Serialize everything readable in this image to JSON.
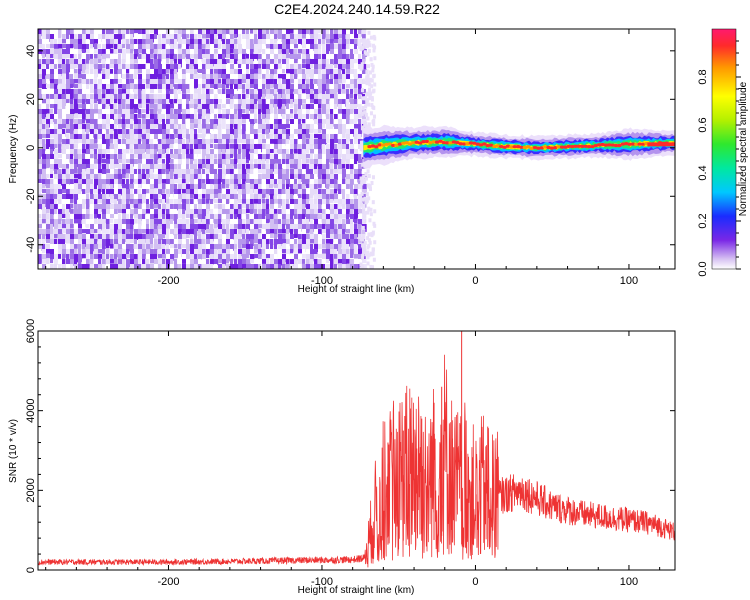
{
  "title": "C2E4.2024.240.14.59.R22",
  "chart_data": [
    {
      "type": "heatmap",
      "xlabel": "Height of straight line (km)",
      "ylabel": "Frequency (Hz)",
      "xlim": [
        -285,
        130
      ],
      "ylim": [
        -50,
        49
      ],
      "x_ticks": [
        -200,
        -100,
        0,
        100
      ],
      "y_ticks": [
        -40,
        -20,
        0,
        20,
        40
      ],
      "noise_region_x": [
        -285,
        -73
      ],
      "signal_band": [
        {
          "x": -73,
          "f": 0.0,
          "width": 5
        },
        {
          "x": -60,
          "f": 1.0,
          "width": 5
        },
        {
          "x": -40,
          "f": 2.0,
          "width": 4
        },
        {
          "x": -20,
          "f": 2.5,
          "width": 4
        },
        {
          "x": 0,
          "f": 1.5,
          "width": 3
        },
        {
          "x": 20,
          "f": 0.5,
          "width": 3
        },
        {
          "x": 40,
          "f": 0.0,
          "width": 3
        },
        {
          "x": 60,
          "f": 0.5,
          "width": 3
        },
        {
          "x": 80,
          "f": 1.0,
          "width": 3
        },
        {
          "x": 100,
          "f": 1.5,
          "width": 4
        },
        {
          "x": 130,
          "f": 2.0,
          "width": 3
        }
      ],
      "colorbar": {
        "label": "Normalized spectral amplitude",
        "range": [
          0,
          1
        ],
        "ticks": [
          "0.0",
          "0.2",
          "0.4",
          "0.6",
          "0.8"
        ],
        "tick_values": [
          0,
          0.2,
          0.4,
          0.6,
          0.8
        ]
      }
    },
    {
      "type": "line",
      "xlabel": "Height of straight line (km)",
      "ylabel": "SNR (10 * v/v)",
      "xlim": [
        -285,
        130
      ],
      "ylim": [
        0,
        6000
      ],
      "x_ticks": [
        -200,
        -100,
        0,
        100
      ],
      "y_ticks": [
        0,
        2000,
        4000,
        6000
      ],
      "color": "#ee3333",
      "series": [
        {
          "x": [
            -285,
            -250,
            -200,
            -150,
            -100,
            -80,
            -72,
            -65,
            -60,
            -50,
            -40,
            -30,
            -20,
            -15,
            -10,
            -5,
            0,
            5,
            10,
            20,
            30,
            40,
            50,
            60,
            70,
            80,
            90,
            100,
            110,
            120,
            130
          ],
          "values": [
            200,
            200,
            200,
            220,
            250,
            260,
            300,
            1500,
            2000,
            2400,
            2600,
            2300,
            3000,
            2300,
            2100,
            2300,
            1800,
            2100,
            1800,
            1900,
            2000,
            1800,
            1600,
            1500,
            1400,
            1350,
            1300,
            1250,
            1200,
            1100,
            950
          ]
        }
      ],
      "spikes": [
        {
          "x": -57,
          "y": 3200
        },
        {
          "x": -47,
          "y": 3500
        },
        {
          "x": -35,
          "y": 3800
        },
        {
          "x": -27,
          "y": 4200
        },
        {
          "x": -22,
          "y": 4600
        },
        {
          "x": -15,
          "y": 3300
        },
        {
          "x": -9,
          "y": 6000
        },
        {
          "x": 8,
          "y": 3600
        },
        {
          "x": 1,
          "y": 1900
        }
      ]
    }
  ]
}
